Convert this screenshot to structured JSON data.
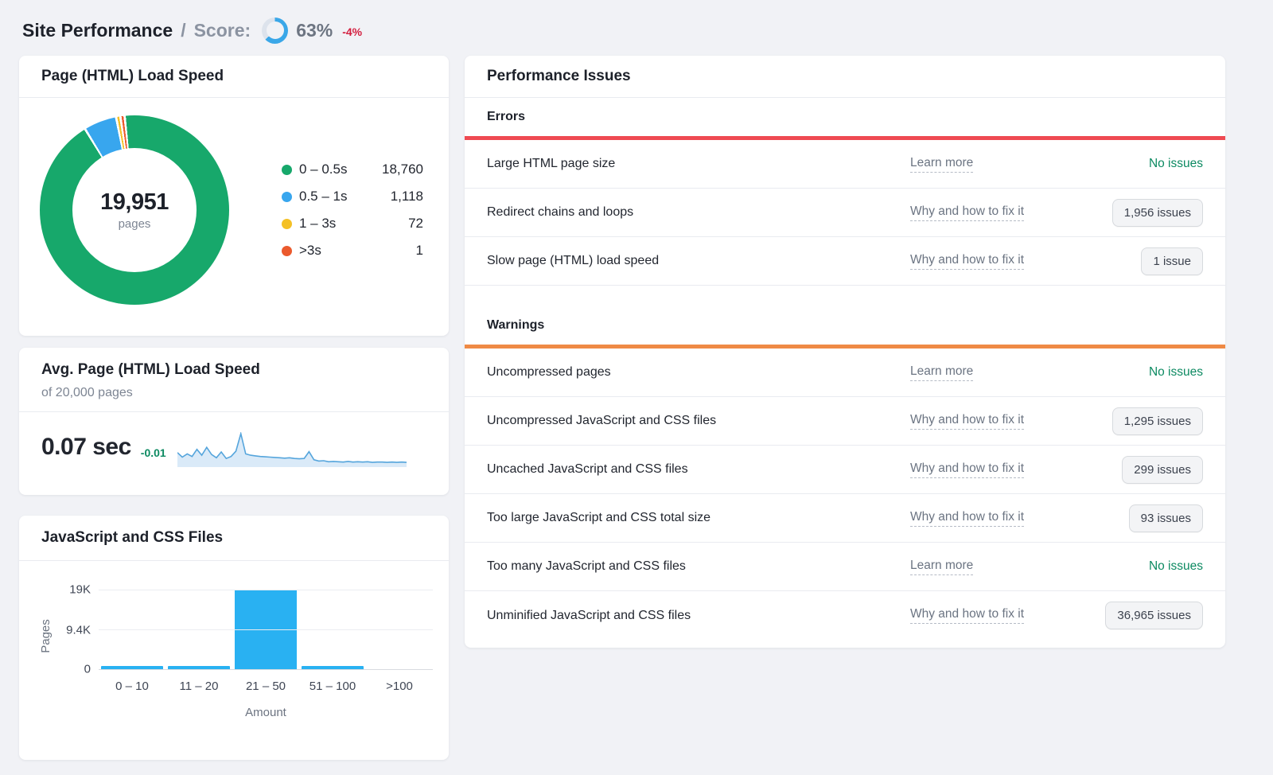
{
  "header": {
    "title": "Site Performance",
    "separator": "/",
    "score_label": "Score:",
    "score_value": "63%",
    "score_percent": 63,
    "score_delta": "-4%",
    "ring_color": "#3aa7e8",
    "ring_track_color": "#dde3ec"
  },
  "load_speed_card": {
    "title": "Page (HTML) Load Speed",
    "center_value": "19,951",
    "center_label": "pages"
  },
  "avg_card": {
    "title": "Avg. Page (HTML) Load Speed",
    "subtitle": "of 20,000 pages",
    "value": "0.07 sec",
    "delta": "-0.01"
  },
  "js_css_card": {
    "title": "JavaScript and CSS Files"
  },
  "issues_card": {
    "title": "Performance Issues",
    "sections": [
      {
        "key": "errors",
        "heading": "Errors",
        "bar_color": "#ef4a52",
        "rows": [
          {
            "label": "Large HTML page size",
            "action": "Learn more",
            "result": "No issues",
            "result_type": "status"
          },
          {
            "label": "Redirect chains and loops",
            "action": "Why and how to fix it",
            "result": "1,956 issues",
            "result_type": "badge"
          },
          {
            "label": "Slow page (HTML) load speed",
            "action": "Why and how to fix it",
            "result": "1 issue",
            "result_type": "badge"
          }
        ]
      },
      {
        "key": "warnings",
        "heading": "Warnings",
        "bar_color": "#ef8a45",
        "rows": [
          {
            "label": "Uncompressed pages",
            "action": "Learn more",
            "result": "No issues",
            "result_type": "status"
          },
          {
            "label": "Uncompressed JavaScript and CSS files",
            "action": "Why and how to fix it",
            "result": "1,295 issues",
            "result_type": "badge"
          },
          {
            "label": "Uncached JavaScript and CSS files",
            "action": "Why and how to fix it",
            "result": "299 issues",
            "result_type": "badge"
          },
          {
            "label": "Too large JavaScript and CSS total size",
            "action": "Why and how to fix it",
            "result": "93 issues",
            "result_type": "badge"
          },
          {
            "label": "Too many JavaScript and CSS files",
            "action": "Learn more",
            "result": "No issues",
            "result_type": "status"
          },
          {
            "label": "Unminified JavaScript and CSS files",
            "action": "Why and how to fix it",
            "result": "36,965 issues",
            "result_type": "badge"
          }
        ]
      }
    ]
  },
  "chart_data": [
    {
      "type": "pie",
      "variant": "donut",
      "title": "Page (HTML) Load Speed",
      "total_value": 19951,
      "total_display": "19,951",
      "unit": "pages",
      "segments": [
        {
          "label": "0 – 0.5s",
          "value": 18760,
          "display": "18,760",
          "color": "#17a86b"
        },
        {
          "label": "0.5 – 1s",
          "value": 1118,
          "display": "1,118",
          "color": "#38a6ee"
        },
        {
          "label": "1 – 3s",
          "value": 72,
          "display": "72",
          "color": "#f4c025"
        },
        {
          "label": ">3s",
          "value": 1,
          "display": "1",
          "color": "#eb5a2d"
        }
      ]
    },
    {
      "type": "area",
      "title": "Avg. Page (HTML) Load Speed trend",
      "current_value": "0.07 sec",
      "delta": "-0.01",
      "line_color": "#55a5dc",
      "fill_color": "#daeaf8",
      "values_normalized": [
        0.42,
        0.28,
        0.38,
        0.3,
        0.52,
        0.34,
        0.58,
        0.36,
        0.26,
        0.44,
        0.24,
        0.3,
        0.46,
        1.0,
        0.38,
        0.34,
        0.32,
        0.3,
        0.29,
        0.28,
        0.27,
        0.26,
        0.25,
        0.26,
        0.24,
        0.23,
        0.24,
        0.45,
        0.2,
        0.16,
        0.17,
        0.14,
        0.15,
        0.14,
        0.13,
        0.15,
        0.13,
        0.14,
        0.13,
        0.14,
        0.12,
        0.13,
        0.13,
        0.12,
        0.13,
        0.12,
        0.13,
        0.12
      ]
    },
    {
      "type": "bar",
      "title": "JavaScript and CSS Files",
      "categories": [
        "0 – 10",
        "11 – 20",
        "21 – 50",
        "51 – 100",
        ">100"
      ],
      "values": [
        260,
        300,
        18950,
        280,
        0
      ],
      "xlabel": "Amount",
      "ylabel": "Pages",
      "ylim": [
        0,
        19000
      ],
      "yticks": [
        {
          "label": "19K",
          "value": 19000
        },
        {
          "label": "9.4K",
          "value": 9400
        },
        {
          "label": "0",
          "value": 0
        }
      ],
      "bar_color": "#29b1f2",
      "grid": true,
      "legend_position": "none"
    }
  ]
}
